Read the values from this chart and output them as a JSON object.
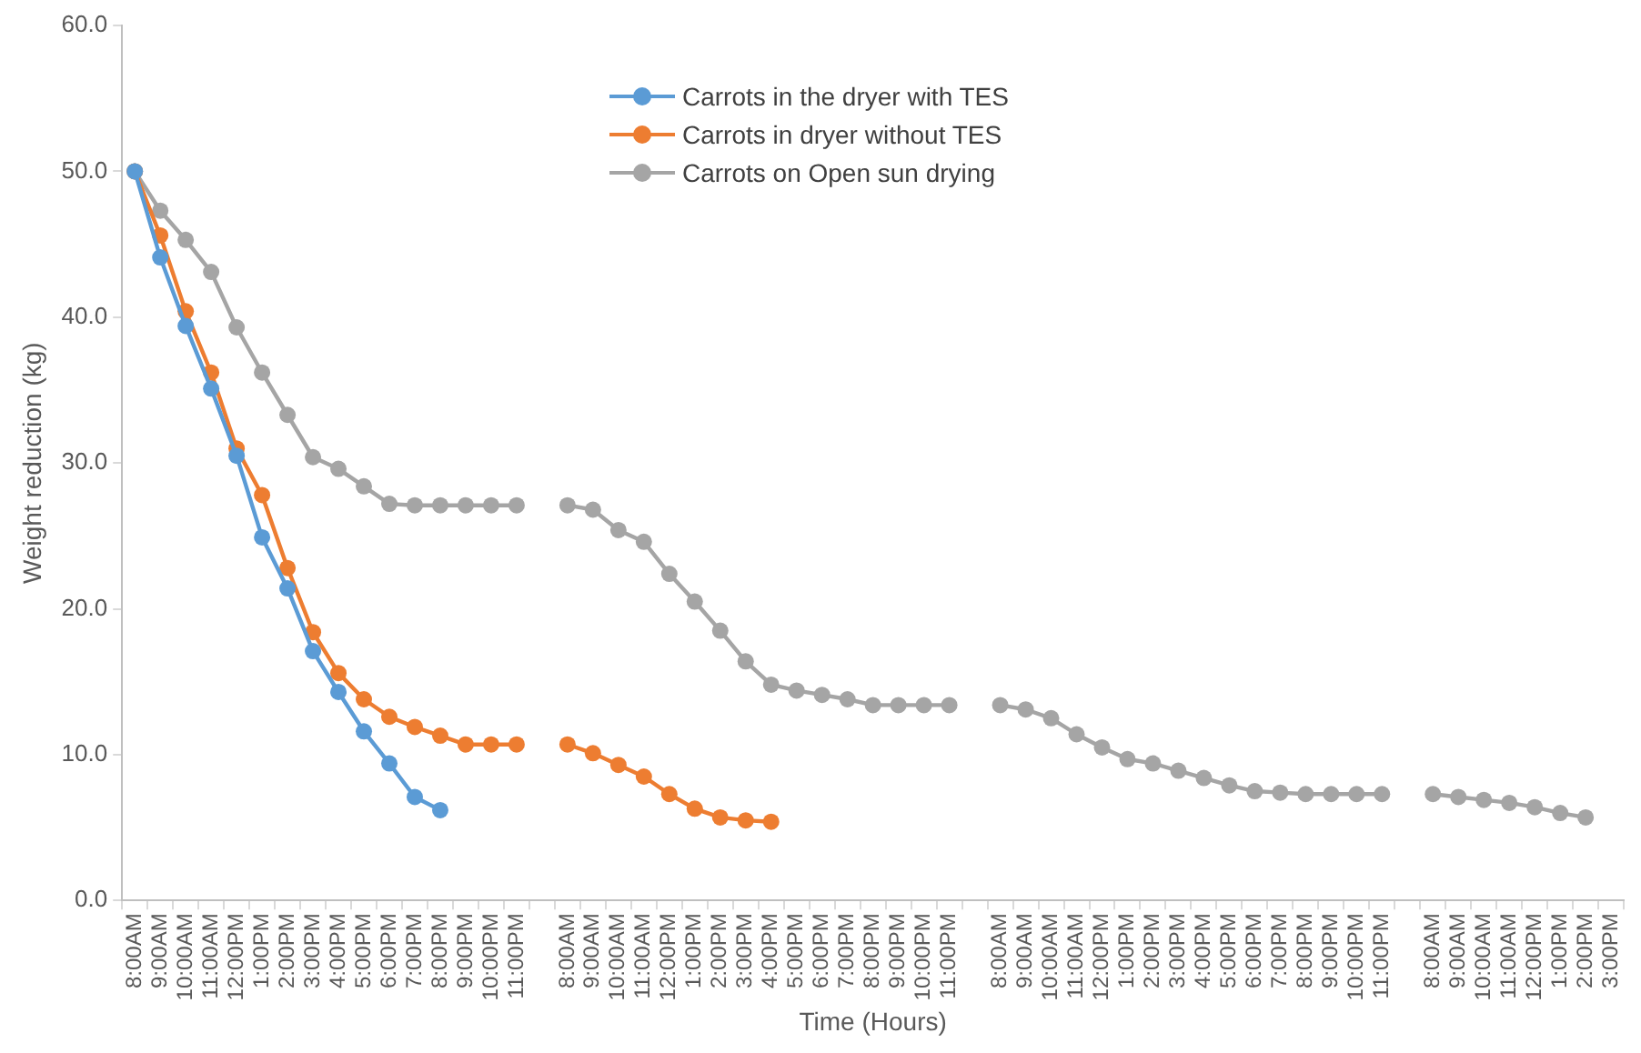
{
  "chart_data": {
    "type": "line",
    "xlabel": "Time (Hours)",
    "ylabel": "Weight reduction (kg)",
    "categories": [
      "8:00AM",
      "9:00AM",
      "10:00AM",
      "11:00AM",
      "12:00PM",
      "1:00PM",
      "2:00PM",
      "3:00PM",
      "4:00PM",
      "5:00PM",
      "6:00PM",
      "7:00PM",
      "8:00PM",
      "9:00PM",
      "10:00PM",
      "11:00PM",
      null,
      "8:00AM",
      "9:00AM",
      "10:00AM",
      "11:00AM",
      "12:00PM",
      "1:00PM",
      "2:00PM",
      "3:00PM",
      "4:00PM",
      "5:00PM",
      "6:00PM",
      "7:00PM",
      "8:00PM",
      "9:00PM",
      "10:00PM",
      "11:00PM",
      null,
      "8:00AM",
      "9:00AM",
      "10:00AM",
      "11:00AM",
      "12:00PM",
      "1:00PM",
      "2:00PM",
      "3:00PM",
      "4:00PM",
      "5:00PM",
      "6:00PM",
      "7:00PM",
      "8:00PM",
      "9:00PM",
      "10:00PM",
      "11:00PM",
      null,
      "8:00AM",
      "9:00AM",
      "10:00AM",
      "11:00AM",
      "12:00PM",
      "1:00PM",
      "2:00PM",
      "3:00PM"
    ],
    "series": [
      {
        "name": "Carrots in the dryer with TES",
        "color": "#5b9bd5",
        "values": [
          50,
          44.1,
          39.4,
          35.1,
          30.5,
          24.9,
          21.4,
          17.1,
          14.3,
          11.6,
          9.4,
          7.1,
          6.2,
          null,
          null,
          null,
          null,
          null,
          null,
          null,
          null,
          null,
          null,
          null,
          null,
          null,
          null,
          null,
          null,
          null,
          null,
          null,
          null,
          null,
          null,
          null,
          null,
          null,
          null,
          null,
          null,
          null,
          null,
          null,
          null,
          null,
          null,
          null,
          null,
          null,
          null,
          null,
          null,
          null,
          null,
          null,
          null,
          null,
          null
        ]
      },
      {
        "name": "Carrots in dryer without TES",
        "color": "#ed7d31",
        "values": [
          50,
          45.6,
          40.4,
          36.2,
          31.0,
          27.8,
          22.8,
          18.4,
          15.6,
          13.8,
          12.6,
          11.9,
          11.3,
          10.7,
          10.7,
          10.7,
          null,
          10.7,
          10.1,
          9.3,
          8.5,
          7.3,
          6.3,
          5.7,
          5.5,
          5.4,
          null,
          null,
          null,
          null,
          null,
          null,
          null,
          null,
          null,
          null,
          null,
          null,
          null,
          null,
          null,
          null,
          null,
          null,
          null,
          null,
          null,
          null,
          null,
          null,
          null,
          null,
          null,
          null,
          null,
          null,
          null,
          null,
          null
        ]
      },
      {
        "name": "Carrots on Open sun drying",
        "color": "#a5a5a5",
        "values": [
          50,
          47.3,
          45.3,
          43.1,
          39.3,
          36.2,
          33.3,
          30.4,
          29.6,
          28.4,
          27.2,
          27.1,
          27.1,
          27.1,
          27.1,
          27.1,
          null,
          27.1,
          26.8,
          25.4,
          24.6,
          22.4,
          20.5,
          18.5,
          16.4,
          14.8,
          14.4,
          14.1,
          13.8,
          13.4,
          13.4,
          13.4,
          13.4,
          null,
          13.4,
          13.1,
          12.5,
          11.4,
          10.5,
          9.7,
          9.4,
          8.9,
          8.4,
          7.9,
          7.5,
          7.4,
          7.3,
          7.3,
          7.3,
          7.3,
          null,
          7.3,
          7.1,
          6.9,
          6.7,
          6.4,
          6.0,
          5.7,
          null
        ]
      }
    ],
    "ylim": [
      0,
      60
    ],
    "yticks": [
      {
        "value": 0,
        "label": "0.0"
      },
      {
        "value": 10,
        "label": "10.0"
      },
      {
        "value": 20,
        "label": "20.0"
      },
      {
        "value": 30,
        "label": "30.0"
      },
      {
        "value": 40,
        "label": "40.0"
      },
      {
        "value": 50,
        "label": "50.0"
      },
      {
        "value": 60,
        "label": "60.0"
      }
    ],
    "legend": "top",
    "marker": "circle",
    "line_style": "solid"
  }
}
